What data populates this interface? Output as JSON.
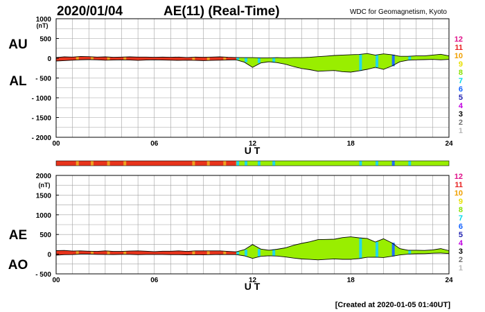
{
  "header": {
    "date": "2020/01/04",
    "title": "AE(11) (Real-Time)",
    "source": "WDC for Geomagnetism, Kyoto"
  },
  "footer": {
    "created": "[Created at 2020-01-05 01:40UT]"
  },
  "colors": {
    "grid": "#a0a0a0",
    "fill_low": "#e8341c",
    "fill_high": "#99ee00",
    "marker_orange": "#f0a020",
    "marker_cyan": "#22d8e8",
    "marker_blue": "#2070ff"
  },
  "station_legend": [
    {
      "label": "12",
      "color": "#e0108a"
    },
    {
      "label": "11",
      "color": "#e82020"
    },
    {
      "label": "10",
      "color": "#f0a000"
    },
    {
      "label": "9",
      "color": "#e8e000"
    },
    {
      "label": "8",
      "color": "#88e000"
    },
    {
      "label": "7",
      "color": "#00d8e8"
    },
    {
      "label": "6",
      "color": "#1060ff"
    },
    {
      "label": "5",
      "color": "#2020b0"
    },
    {
      "label": "4",
      "color": "#c000e0"
    },
    {
      "label": "3",
      "color": "#000000"
    },
    {
      "label": "2",
      "color": "#707070"
    },
    {
      "label": "1",
      "color": "#b8b8b8"
    }
  ],
  "chart_data": [
    {
      "type": "area",
      "panel": "upper",
      "series_labels": [
        "AU",
        "AL"
      ],
      "ylabel": "(nT)",
      "xlabel": "U T",
      "ylim": [
        -2000,
        1000
      ],
      "yticks": [
        1000,
        500,
        0,
        -500,
        -1000,
        -1500,
        -2000
      ],
      "ytick_labels": [
        "1000",
        "500",
        "0",
        "- 500",
        "- 1000",
        "- 1500",
        "- 2000"
      ],
      "xlim": [
        0,
        24
      ],
      "xticks": [
        0,
        6,
        12,
        18,
        24
      ],
      "xtick_labels": [
        "00",
        "06",
        "12",
        "18",
        "24"
      ],
      "grid": true,
      "x": [
        0,
        0.5,
        1,
        1.5,
        2,
        2.5,
        3,
        3.5,
        4,
        4.5,
        5,
        5.5,
        6,
        6.5,
        7,
        7.5,
        8,
        8.5,
        9,
        9.5,
        10,
        10.5,
        11,
        11.5,
        12,
        12.5,
        13,
        13.5,
        14,
        14.5,
        15,
        15.5,
        16,
        16.5,
        17,
        17.5,
        18,
        18.5,
        19,
        19.5,
        20,
        20.5,
        21,
        21.5,
        22,
        22.5,
        23,
        23.5,
        24
      ],
      "AU": [
        20,
        35,
        30,
        45,
        40,
        30,
        35,
        25,
        30,
        35,
        30,
        30,
        25,
        30,
        25,
        30,
        20,
        30,
        25,
        30,
        35,
        25,
        20,
        15,
        15,
        10,
        10,
        15,
        10,
        15,
        15,
        25,
        40,
        55,
        70,
        80,
        90,
        95,
        120,
        80,
        110,
        90,
        50,
        50,
        60,
        60,
        80,
        100,
        60
      ],
      "AL": [
        -70,
        -60,
        -50,
        -40,
        -35,
        -40,
        -50,
        -45,
        -40,
        -45,
        -55,
        -45,
        -40,
        -45,
        -50,
        -55,
        -50,
        -55,
        -60,
        -55,
        -50,
        -45,
        -40,
        -100,
        -230,
        -120,
        -90,
        -110,
        -150,
        -210,
        -260,
        -290,
        -330,
        -320,
        -310,
        -340,
        -350,
        -320,
        -280,
        -230,
        -280,
        -200,
        -90,
        -50,
        -40,
        -35,
        -30,
        -40,
        -30
      ]
    },
    {
      "type": "area",
      "panel": "lower",
      "series_labels": [
        "AE",
        "AO"
      ],
      "ylabel": "(nT)",
      "xlabel": "U T",
      "ylim": [
        -500,
        2000
      ],
      "yticks": [
        2000,
        1500,
        1000,
        500,
        0,
        -500
      ],
      "ytick_labels": [
        "2000",
        "1500",
        "1000",
        "500",
        "0",
        "- 500"
      ],
      "xlim": [
        0,
        24
      ],
      "xticks": [
        0,
        6,
        12,
        18,
        24
      ],
      "xtick_labels": [
        "00",
        "06",
        "12",
        "18",
        "24"
      ],
      "grid": true,
      "x": [
        0,
        0.5,
        1,
        1.5,
        2,
        2.5,
        3,
        3.5,
        4,
        4.5,
        5,
        5.5,
        6,
        6.5,
        7,
        7.5,
        8,
        8.5,
        9,
        9.5,
        10,
        10.5,
        11,
        11.5,
        12,
        12.5,
        13,
        13.5,
        14,
        14.5,
        15,
        15.5,
        16,
        16.5,
        17,
        17.5,
        18,
        18.5,
        19,
        19.5,
        20,
        20.5,
        21,
        21.5,
        22,
        22.5,
        23,
        23.5,
        24
      ],
      "AE": [
        90,
        95,
        80,
        85,
        75,
        70,
        85,
        70,
        70,
        80,
        85,
        75,
        65,
        75,
        75,
        85,
        70,
        85,
        85,
        85,
        85,
        70,
        60,
        115,
        245,
        130,
        100,
        125,
        160,
        225,
        275,
        315,
        370,
        375,
        380,
        420,
        440,
        415,
        400,
        310,
        390,
        290,
        140,
        100,
        100,
        95,
        110,
        140,
        90
      ],
      "AO": [
        -25,
        -12,
        -10,
        2,
        2,
        -5,
        -8,
        -10,
        -5,
        -5,
        -12,
        -8,
        -8,
        -8,
        -12,
        -12,
        -15,
        -12,
        -18,
        -12,
        -8,
        -10,
        -10,
        -42,
        -108,
        -55,
        -40,
        -48,
        -70,
        -98,
        -122,
        -132,
        -145,
        -132,
        -120,
        -130,
        -130,
        -112,
        -80,
        -75,
        -85,
        -55,
        -20,
        0,
        10,
        12,
        25,
        30,
        15
      ]
    }
  ],
  "activity_bar": {
    "segments": [
      {
        "from": 0,
        "to": 11,
        "level": "low"
      },
      {
        "from": 11,
        "to": 24,
        "level": "high"
      }
    ],
    "markers": [
      {
        "at": 1.3,
        "color": "orange"
      },
      {
        "at": 2.2,
        "color": "orange"
      },
      {
        "at": 3.2,
        "color": "orange"
      },
      {
        "at": 4.2,
        "color": "orange"
      },
      {
        "at": 8.4,
        "color": "orange"
      },
      {
        "at": 9.3,
        "color": "orange"
      },
      {
        "at": 10.3,
        "color": "orange"
      },
      {
        "at": 11.1,
        "color": "cyan"
      },
      {
        "at": 11.6,
        "color": "cyan"
      },
      {
        "at": 12.4,
        "color": "cyan"
      },
      {
        "at": 13.3,
        "color": "cyan"
      },
      {
        "at": 18.6,
        "color": "cyan"
      },
      {
        "at": 19.6,
        "color": "cyan"
      },
      {
        "at": 20.6,
        "color": "blue"
      },
      {
        "at": 21.6,
        "color": "cyan"
      }
    ]
  }
}
